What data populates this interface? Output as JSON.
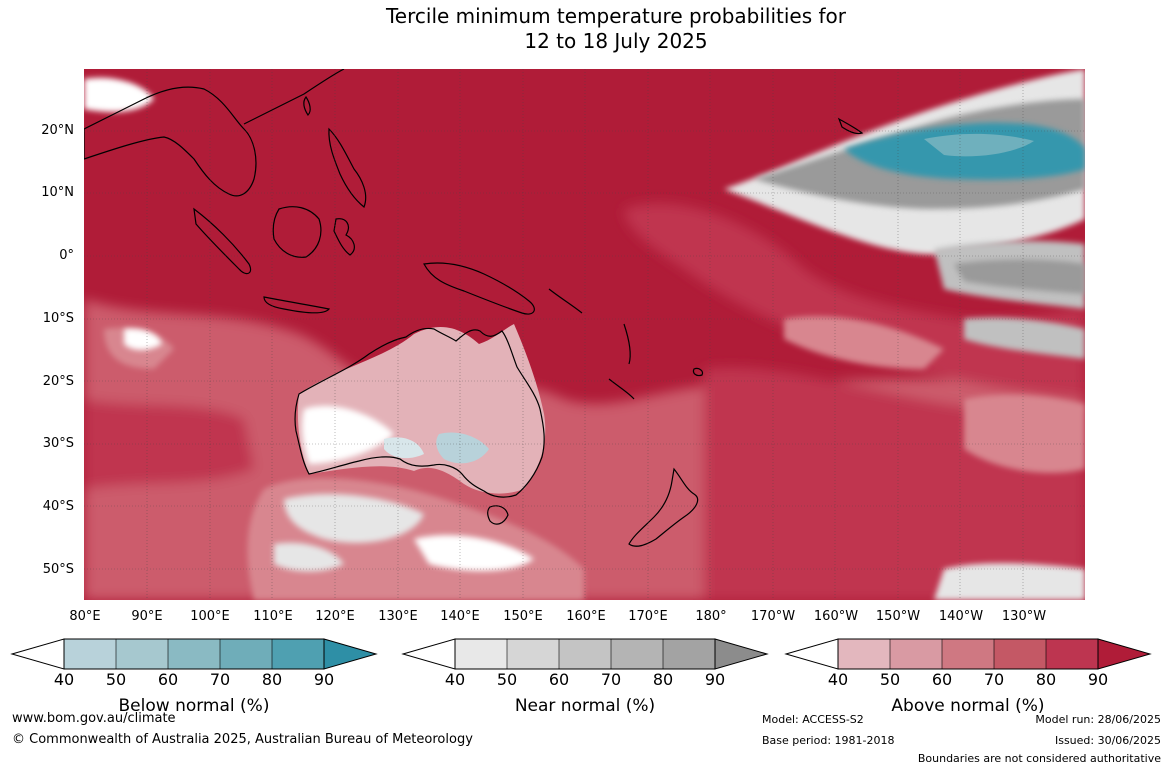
{
  "title": {
    "line1": "Tercile minimum temperature probabilities for",
    "line2": "12 to 18 July 2025"
  },
  "map": {
    "lat_labels": [
      "20°N",
      "10°N",
      "0°",
      "10°S",
      "20°S",
      "30°S",
      "40°S",
      "50°S"
    ],
    "lon_labels": [
      "80°E",
      "90°E",
      "100°E",
      "110°E",
      "120°E",
      "130°E",
      "140°E",
      "150°E",
      "160°E",
      "170°E",
      "180°",
      "170°W",
      "160°W",
      "150°W",
      "140°W",
      "130°W"
    ],
    "colors": {
      "above_90": "#b01c38",
      "above_80": "#c03650",
      "above_70": "#cc5c6c",
      "above_60": "#d8868f",
      "above_50": "#e3b2b8",
      "near_40": "#e6e6e6",
      "near_60": "#c0c0c0",
      "near_80": "#9a9a9a",
      "below_50": "#b8d2da",
      "below_70": "#6fb0bd",
      "below_90": "#3597ad"
    }
  },
  "colorbars": [
    {
      "name": "below",
      "title": "Below normal (%)",
      "ticks": [
        "40",
        "50",
        "60",
        "70",
        "80",
        "90"
      ],
      "colors": [
        "#b8d2da",
        "#a6c8cf",
        "#8abac3",
        "#6fadb9",
        "#4fa0b1",
        "#2e8fa6"
      ]
    },
    {
      "name": "near",
      "title": "Near normal (%)",
      "ticks": [
        "40",
        "50",
        "60",
        "70",
        "80",
        "90"
      ],
      "colors": [
        "#e8e8e8",
        "#d6d6d6",
        "#c4c4c4",
        "#b4b4b4",
        "#a3a3a3",
        "#8c8c8c"
      ]
    },
    {
      "name": "above",
      "title": "Above normal (%)",
      "ticks": [
        "40",
        "50",
        "60",
        "70",
        "80",
        "90"
      ],
      "colors": [
        "#e3b7be",
        "#d99aa3",
        "#cf7882",
        "#c45865",
        "#bd3550",
        "#b01c38"
      ]
    }
  ],
  "footer": {
    "website": "www.bom.gov.au/climate",
    "copyright": "© Commonwealth of Australia 2025, Australian Bureau of Meteorology",
    "model": "Model: ACCESS-S2",
    "base_period": "Base period: 1981-2018",
    "model_run": "Model run: 28/06/2025",
    "issued": "Issued: 30/06/2025",
    "disclaimer": "Boundaries are not considered authoritative"
  }
}
